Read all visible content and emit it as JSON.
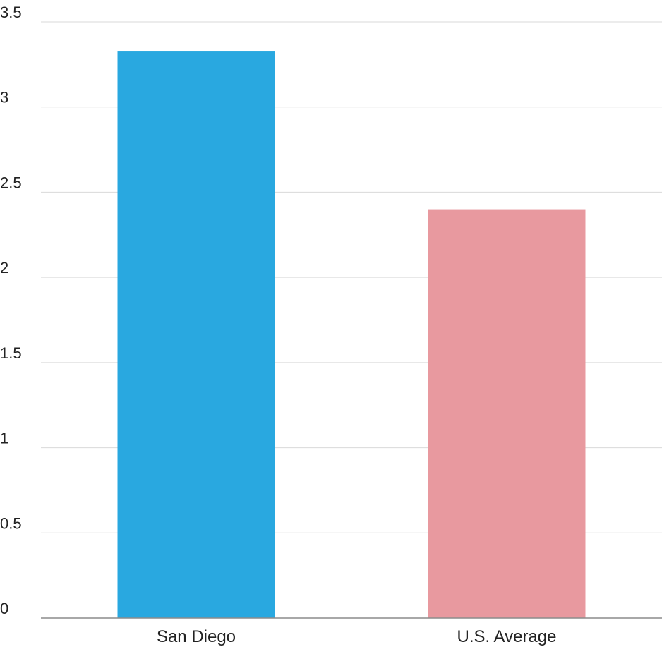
{
  "chart_data": {
    "type": "bar",
    "title": "",
    "xlabel": "",
    "ylabel": "",
    "categories": [
      "San Diego",
      "U.S. Average"
    ],
    "values": [
      3.33,
      2.4
    ],
    "colors": [
      "#29a8e0",
      "#e8999f"
    ],
    "ylim": [
      0,
      3.5
    ],
    "yticks": [
      0,
      0.5,
      1,
      1.5,
      2,
      2.5,
      3,
      3.5
    ],
    "ytick_labels": [
      "0",
      "0.5",
      "1",
      "1.5",
      "2",
      "2.5",
      "3",
      "3.5"
    ],
    "grid": true,
    "legend": "none"
  }
}
